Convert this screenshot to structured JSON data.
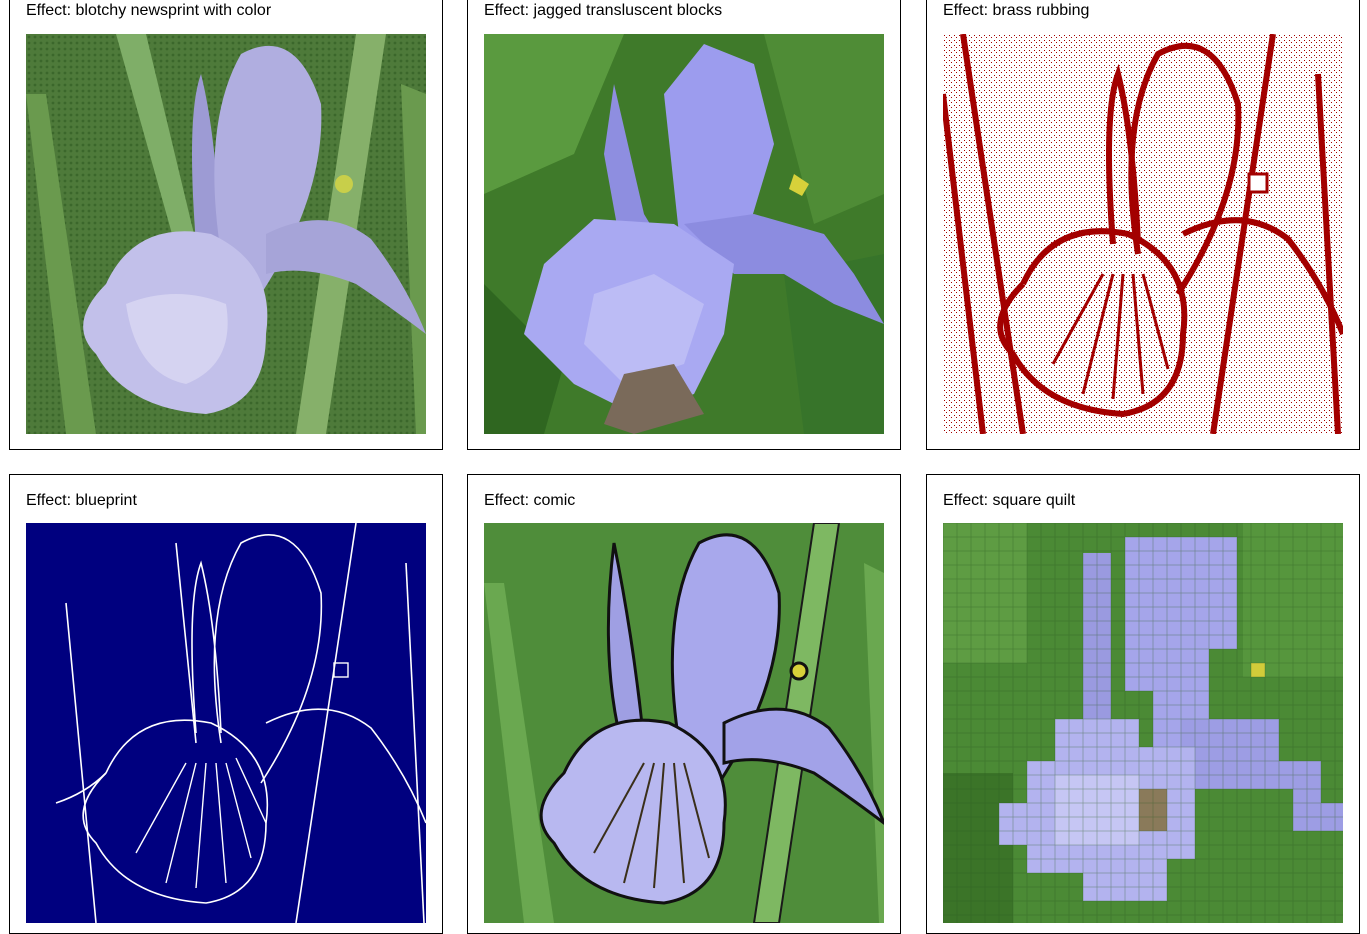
{
  "effects": [
    {
      "label": "Effect: blotchy newsprint with color",
      "style": "newsprint"
    },
    {
      "label": "Effect: jagged transluscent blocks",
      "style": "blocks"
    },
    {
      "label": "Effect: brass rubbing",
      "style": "brass"
    },
    {
      "label": "Effect: blueprint",
      "style": "blueprint"
    },
    {
      "label": "Effect: comic",
      "style": "comic"
    },
    {
      "label": "Effect: square quilt",
      "style": "quilt"
    }
  ],
  "colors": {
    "green_dark": "#3f6b2e",
    "green_light": "#7da563",
    "petal": "#a9a9e6",
    "petal_dark": "#8a8ad8",
    "brass": "#a30000",
    "blueprint": "#00007f"
  }
}
